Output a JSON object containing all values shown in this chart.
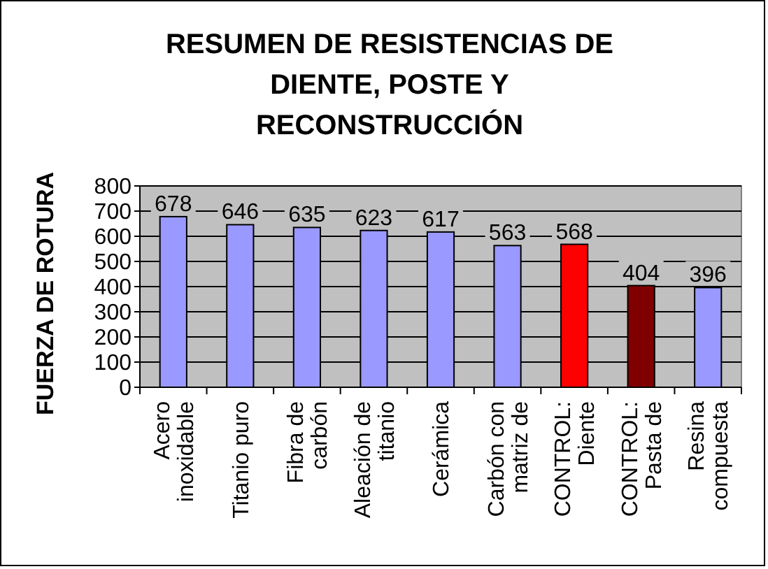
{
  "chart_data": {
    "type": "bar",
    "title": "RESUMEN DE RESISTENCIAS DE DIENTE, POSTE Y RECONSTRUCCIÓN",
    "ylabel": "FUERZA DE ROTURA",
    "categories": [
      "Acero inoxidable",
      "Titanio puro",
      "Fibra de carbón",
      "Aleación de titanio",
      "Cerámica",
      "Carbón con matriz de",
      "CONTROL: Diente",
      "CONTROL: Pasta de",
      "Resina compuesta"
    ],
    "values": [
      678,
      646,
      635,
      623,
      617,
      563,
      568,
      404,
      396
    ],
    "colors": [
      "#9999ff",
      "#9999ff",
      "#9999ff",
      "#9999ff",
      "#9999ff",
      "#9999ff",
      "#ff0000",
      "#800000",
      "#9999ff"
    ],
    "ylim": [
      0,
      800
    ],
    "yticks": [
      0,
      100,
      200,
      300,
      400,
      500,
      600,
      700,
      800
    ],
    "grid": "y",
    "data_labels": true
  }
}
